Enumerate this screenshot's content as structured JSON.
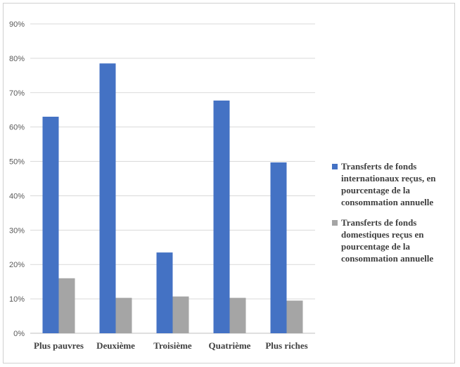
{
  "chart_data": {
    "type": "bar",
    "categories": [
      "Plus pauvres",
      "Deuxième",
      "Troisième",
      "Quatrième",
      "Plus riches"
    ],
    "series": [
      {
        "name": "Transferts de fonds internationaux reçus, en pourcentage de la consommation annuelle",
        "values": [
          63,
          78.5,
          23.5,
          67.7,
          49.7
        ],
        "color": "#4472c4"
      },
      {
        "name": "Transferts de fonds domestiques reçus en pourcentage de la consommation annuelle",
        "values": [
          16,
          10.3,
          10.7,
          10.3,
          9.5
        ],
        "color": "#a5a5a5"
      }
    ],
    "yticks": [
      "0%",
      "10%",
      "20%",
      "30%",
      "40%",
      "50%",
      "60%",
      "70%",
      "80%",
      "90%"
    ],
    "ylim": [
      0,
      90
    ],
    "grid": true,
    "legend": "right",
    "title": "",
    "xlabel": "",
    "ylabel": ""
  }
}
